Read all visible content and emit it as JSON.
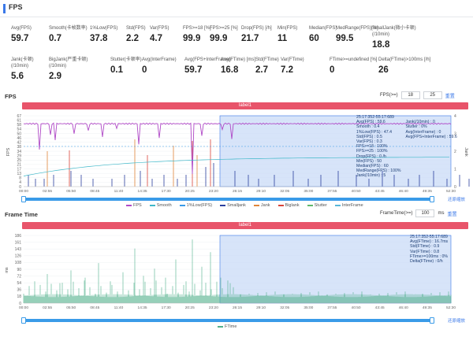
{
  "header": {
    "title": "FPS"
  },
  "stats_row1": [
    {
      "label": "Avg(FPS)",
      "value": "59.7"
    },
    {
      "label": "Smooth(卡帧数率)",
      "value": "0.7"
    },
    {
      "label": "1%Low(FPS)",
      "value": "37.8"
    },
    {
      "label": "Std(FPS)",
      "value": "2.2"
    },
    {
      "label": "Var(FPS)",
      "value": "4.7"
    },
    {
      "label": "FPS>=18 [%]",
      "value": "99.9"
    },
    {
      "label": "FPS>=25 [%]",
      "value": "99.9"
    },
    {
      "label": "Drop(FPS) [/h]",
      "value": "21.7"
    },
    {
      "label": "Min(FPS)",
      "value": "11"
    },
    {
      "label": "Median(FPS)",
      "value": "60"
    },
    {
      "label": "MedRange(FPS)[%]",
      "value": "99.5"
    },
    {
      "label": "SmallJank(微小卡顿)\n(/10min)",
      "value": "18.8"
    }
  ],
  "stats_row2": [
    {
      "label": "Jank(卡顿)\n(/10min)",
      "value": "5.6"
    },
    {
      "label": "BigJank(严重卡顿)\n(/10min)",
      "value": "2.9"
    },
    {
      "label": "Stutter(卡顿率)",
      "value": "0.1"
    },
    {
      "label": "Avg(InterFrame)",
      "value": "0"
    },
    {
      "label": "Avg(FPS+InterFrame)",
      "value": "59.7"
    },
    {
      "label": "Avg(FTime) [ms]",
      "value": "16.8"
    },
    {
      "label": "Std(FTime)",
      "value": "2.7"
    },
    {
      "label": "Var(FTime)",
      "value": "7.2"
    },
    {
      "label": "FTime>=undefined [%]",
      "value": "0"
    },
    {
      "label": "Delta(FTime)>100ms [/h]",
      "value": "26"
    }
  ],
  "fps_section": {
    "title": "FPS",
    "ctrl_label": "FPS(>=)",
    "ctrl_v1": "18",
    "ctrl_v2": "25",
    "reset": "重置",
    "labelbar": "label1",
    "y_title": "FPS",
    "y2_title": "Jank",
    "y_ticks": [
      "67",
      "61",
      "58",
      "54",
      "50",
      "46",
      "42",
      "38",
      "34",
      "29",
      "25",
      "21",
      "17",
      "13",
      "8",
      "4",
      "0"
    ],
    "y2_ticks": [
      "4",
      "3",
      "2",
      "1",
      "0"
    ],
    "x_ticks": [
      "00:00",
      "02:55",
      "05:50",
      "08:45",
      "11:40",
      "14:35",
      "17:30",
      "20:25",
      "23:20",
      "26:15",
      "29:10",
      "32:05",
      "35:00",
      "37:55",
      "40:50",
      "43:45",
      "46:40",
      "49:35",
      "52:30"
    ],
    "restore": "还原缩放",
    "legend": [
      {
        "name": "FPS",
        "color": "#b04ac7"
      },
      {
        "name": "Smooth",
        "color": "#3fb8c9"
      },
      {
        "name": "1%Low(FPS)",
        "color": "#3a9be8"
      },
      {
        "name": "Smalljank",
        "color": "#2a3f9e"
      },
      {
        "name": "Jank",
        "color": "#e0863a"
      },
      {
        "name": "Biglank",
        "color": "#d9453a"
      },
      {
        "name": "Stutter",
        "color": "#5fb86a"
      },
      {
        "name": "InterFrame",
        "color": "#58b7d8"
      }
    ],
    "tooltip": {
      "range": "25:17:352-55:17:689",
      "left": [
        {
          "k": "Avg(FPS)",
          "v": "59.6"
        },
        {
          "k": "Smooth",
          "v": "0.4"
        },
        {
          "k": "1%Low(FPS)",
          "v": "47.4"
        },
        {
          "k": "Std(FPS)",
          "v": "0.5"
        },
        {
          "k": "Var(FPS)",
          "v": "0.3"
        },
        {
          "k": "FPS>=18",
          "v": "100%"
        },
        {
          "k": "FPS>=25",
          "v": "100%"
        },
        {
          "k": "Drop(FPS)",
          "v": "0 /h"
        },
        {
          "k": "Min(FPS)",
          "v": "50"
        },
        {
          "k": "Median(FPS)",
          "v": "60"
        },
        {
          "k": "MedRange(FPS)",
          "v": "100%"
        },
        {
          "k": "Jank(/10min)",
          "v": "5"
        }
      ],
      "right": [
        {
          "k": "Jank(/10min)",
          "v": "0"
        },
        {
          "k": "Stutter",
          "v": "0%"
        },
        {
          "k": "Avg(InterFrame)",
          "v": "0"
        },
        {
          "k": "Avg(FPS+InterFrame)",
          "v": "59.6"
        }
      ]
    }
  },
  "ft_section": {
    "title": "Frame Time",
    "ctrl_label": "FrameTime(>=)",
    "ctrl_v1": "100",
    "ctrl_unit": "ms",
    "reset": "重置",
    "labelbar": "label1",
    "y_title": "ms",
    "y_ticks": [
      "186",
      "161",
      "143",
      "126",
      "108",
      "90",
      "72",
      "54",
      "36",
      "18",
      "0"
    ],
    "x_ticks": [
      "00:00",
      "02:55",
      "05:50",
      "08:45",
      "11:40",
      "14:35",
      "17:30",
      "20:25",
      "23:20",
      "26:15",
      "29:10",
      "32:05",
      "35:00",
      "37:55",
      "40:50",
      "43:45",
      "46:40",
      "49:35",
      "52:30"
    ],
    "restore": "还原缩放",
    "legend_name": "FTime",
    "legend_color": "#4fb08a",
    "tooltip": {
      "range": "25:17:352-55:17:689",
      "rows": [
        {
          "k": "Avg(FTime)",
          "v": "16.7ms"
        },
        {
          "k": "Std(FTime)",
          "v": "0.9"
        },
        {
          "k": "Var(FTime)",
          "v": "0.8"
        },
        {
          "k": "FTime>=100ms",
          "v": "0%"
        },
        {
          "k": "Delta(FTime)",
          "v": "0/h"
        }
      ]
    }
  },
  "colors": {
    "accent": "#3a78e8",
    "label_bar": "#e8546a",
    "selection": "#c9dbf7",
    "fps_line": "#b04ac7",
    "ftime_line": "#4fb08a"
  }
}
